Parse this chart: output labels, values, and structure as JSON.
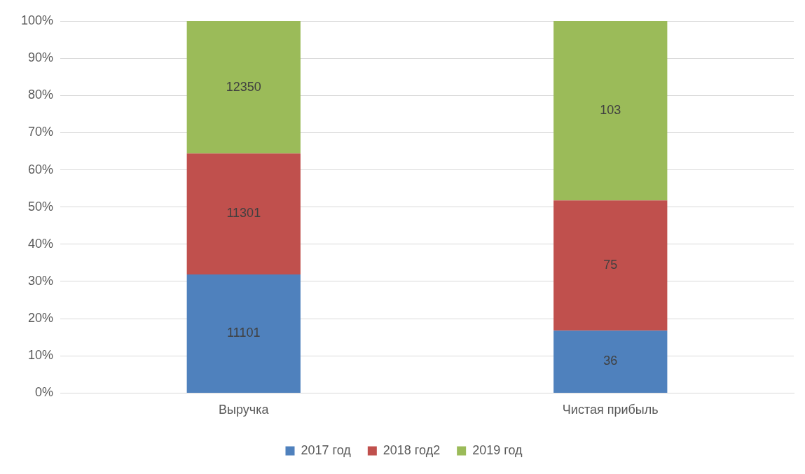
{
  "chart_data": {
    "type": "bar",
    "stacked": true,
    "categories": [
      "Выручка",
      "Чистая прибыль"
    ],
    "series": [
      {
        "name": "2017 год",
        "color": "#4f81bd",
        "values": [
          31.9,
          16.8
        ]
      },
      {
        "name": "2018 год2",
        "color": "#c0504d",
        "values": [
          32.5,
          35.0
        ]
      },
      {
        "name": "2019 год",
        "color": "#9bbb59",
        "values": [
          35.6,
          48.2
        ]
      }
    ],
    "annotations": [
      "11101",
      "11301",
      "12350",
      "36",
      "75",
      "103"
    ],
    "ylim": [
      0,
      100
    ],
    "yticks": [
      {
        "value": 0,
        "label": "0%"
      },
      {
        "value": 10,
        "label": "10%"
      },
      {
        "value": 20,
        "label": "20%"
      },
      {
        "value": 30,
        "label": "30%"
      },
      {
        "value": 40,
        "label": "40%"
      },
      {
        "value": 50,
        "label": "50%"
      },
      {
        "value": 60,
        "label": "60%"
      },
      {
        "value": 70,
        "label": "70%"
      },
      {
        "value": 80,
        "label": "80%"
      },
      {
        "value": 90,
        "label": "90%"
      },
      {
        "value": 100,
        "label": "100%"
      }
    ],
    "grid": "y",
    "legend": "bottom"
  }
}
